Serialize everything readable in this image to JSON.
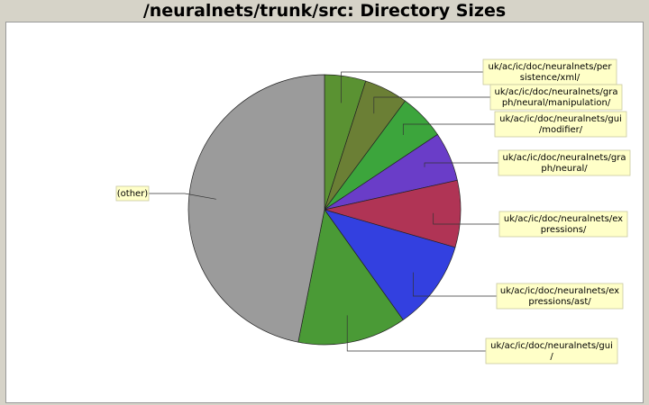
{
  "chart_data": {
    "type": "pie",
    "title": "/neuralnets/trunk/src: Directory Sizes",
    "slices": [
      {
        "label": "uk/ac/ic/doc/neuralnets/persistence/xml/",
        "lines": [
          "uk/ac/ic/doc/neuralnets/per",
          "sistence/xml/"
        ],
        "value": 4.9,
        "color": "#5a9232"
      },
      {
        "label": "uk/ac/ic/doc/neuralnets/graph/neural/manipulation/",
        "lines": [
          "uk/ac/ic/doc/neuralnets/gra",
          "ph/neural/manipulation/"
        ],
        "value": 5.2,
        "color": "#6b7f35"
      },
      {
        "label": "uk/ac/ic/doc/neuralnets/gui/modifier/",
        "lines": [
          "uk/ac/ic/doc/neuralnets/gui",
          "/modifier/"
        ],
        "value": 5.5,
        "color": "#3ca53c"
      },
      {
        "label": "uk/ac/ic/doc/neuralnets/graph/neural/",
        "lines": [
          "uk/ac/ic/doc/neuralnets/gra",
          "ph/neural/"
        ],
        "value": 5.9,
        "color": "#6a3dc8"
      },
      {
        "label": "uk/ac/ic/doc/neuralnets/expressions/",
        "lines": [
          "uk/ac/ic/doc/neuralnets/ex",
          "pressions/"
        ],
        "value": 8.0,
        "color": "#b03455"
      },
      {
        "label": "uk/ac/ic/doc/neuralnets/expressions/ast/",
        "lines": [
          "uk/ac/ic/doc/neuralnets/ex",
          "pressions/ast/"
        ],
        "value": 10.7,
        "color": "#3340e0"
      },
      {
        "label": "uk/ac/ic/doc/neuralnets/gui/",
        "lines": [
          "uk/ac/ic/doc/neuralnets/gui",
          "/"
        ],
        "value": 12.9,
        "color": "#4a9a36"
      },
      {
        "label": "(other)",
        "lines": [
          "(other)"
        ],
        "value": 46.9,
        "color": "#9b9b9b"
      }
    ]
  }
}
